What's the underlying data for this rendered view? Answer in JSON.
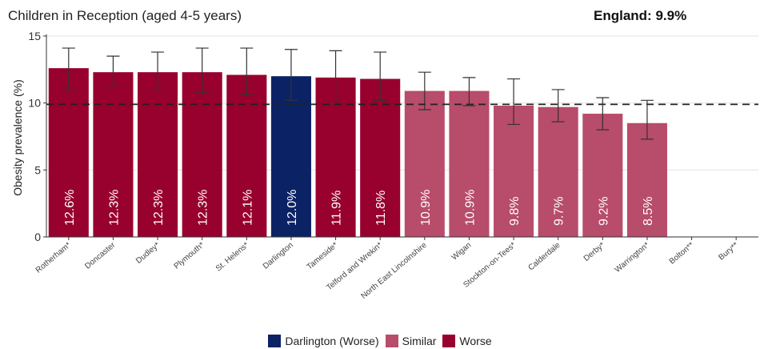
{
  "header": {
    "title": "Children in Reception (aged 4-5 years)",
    "benchmark": "England: 9.9%"
  },
  "colors": {
    "worse": "#98002E",
    "similar": "#B84C6B",
    "highlight": "#0B2265",
    "grid": "#E6E6E6",
    "axis": "#333333"
  },
  "chart_data": {
    "type": "bar",
    "ylabel": "Obesity prevalence (%)",
    "ylim": [
      0,
      15
    ],
    "yticks": [
      0,
      5,
      10,
      15
    ],
    "reference_line": 9.9,
    "grid": true,
    "legend_position": "bottom",
    "legend": [
      {
        "label": "Darlington (Worse)",
        "group": "highlight"
      },
      {
        "label": "Similar",
        "group": "similar"
      },
      {
        "label": "Worse",
        "group": "worse"
      }
    ],
    "categories": [
      "Rotherham*",
      "Doncaster",
      "Dudley*",
      "Plymouth*",
      "St. Helens*",
      "Darlington",
      "Tameside*",
      "Telford and Wrekin*",
      "North East Lincolnshire",
      "Wigan",
      "Stockton-on-Tees*",
      "Calderdale",
      "Derby*",
      "Warrington*",
      "Bolton**",
      "Bury**"
    ],
    "values": [
      12.6,
      12.3,
      12.3,
      12.3,
      12.1,
      12.0,
      11.9,
      11.8,
      10.9,
      10.9,
      9.8,
      9.7,
      9.2,
      8.5,
      null,
      null
    ],
    "labels": [
      "12.6%",
      "12.3%",
      "12.3%",
      "12.3%",
      "12.1%",
      "12.0%",
      "11.9%",
      "11.8%",
      "10.9%",
      "10.9%",
      "9.8%",
      "9.7%",
      "9.2%",
      "8.5%",
      "",
      ""
    ],
    "ci_lower": [
      11.0,
      11.3,
      11.0,
      10.8,
      10.6,
      10.2,
      10.1,
      10.2,
      9.5,
      9.8,
      8.4,
      8.6,
      8.0,
      7.3,
      null,
      null
    ],
    "ci_upper": [
      14.1,
      13.5,
      13.8,
      14.1,
      14.1,
      14.0,
      13.9,
      13.8,
      12.3,
      11.9,
      11.8,
      11.0,
      10.4,
      10.2,
      null,
      null
    ],
    "groups": [
      "worse",
      "worse",
      "worse",
      "worse",
      "worse",
      "highlight",
      "worse",
      "worse",
      "similar",
      "similar",
      "similar",
      "similar",
      "similar",
      "similar",
      "none",
      "none"
    ]
  }
}
